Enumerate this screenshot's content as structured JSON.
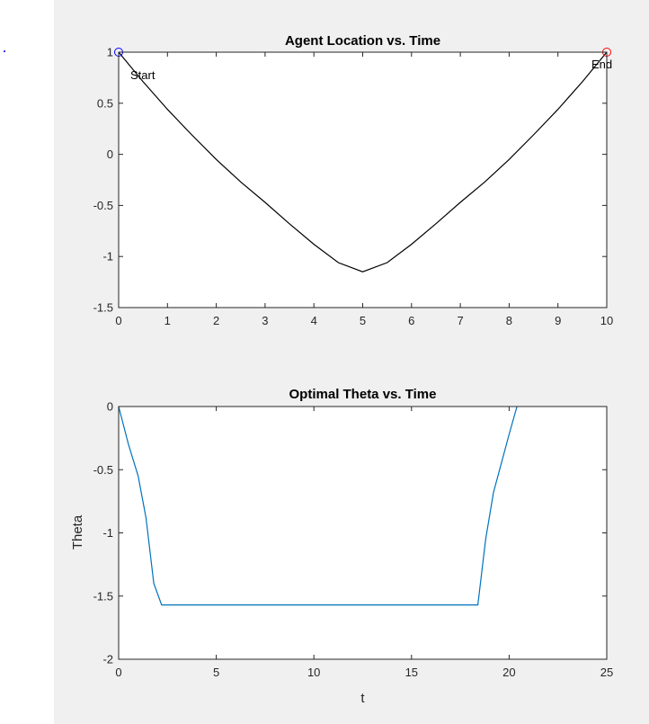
{
  "chart_data": [
    {
      "type": "line",
      "title": "Agent Location vs. Time",
      "xlabel": "",
      "ylabel": "",
      "xlim": [
        0,
        10
      ],
      "ylim": [
        -1.5,
        1
      ],
      "xticks": [
        "0",
        "1",
        "2",
        "3",
        "4",
        "5",
        "6",
        "7",
        "8",
        "9",
        "10"
      ],
      "yticks": [
        "1",
        "0.5",
        "0",
        "-0.5",
        "-1",
        "-1.5"
      ],
      "grid": false,
      "series": [
        {
          "color": "#000000",
          "x": [
            0,
            0.5,
            1,
            1.5,
            2,
            2.5,
            3,
            3.5,
            4,
            4.5,
            5,
            5.5,
            6,
            6.5,
            7,
            7.5,
            8,
            8.5,
            9,
            9.5,
            10
          ],
          "y": [
            1.0,
            0.71,
            0.44,
            0.19,
            -0.05,
            -0.27,
            -0.47,
            -0.68,
            -0.88,
            -1.06,
            -1.15,
            -1.06,
            -0.88,
            -0.68,
            -0.47,
            -0.27,
            -0.05,
            0.19,
            0.44,
            0.71,
            1.0
          ]
        }
      ],
      "markers": [
        {
          "x": 0,
          "y": 1,
          "color": "#0000ff",
          "label": "Start"
        },
        {
          "x": 10,
          "y": 1,
          "color": "#ff0000",
          "label": "End"
        }
      ]
    },
    {
      "type": "line",
      "title": "Optimal Theta vs. Time",
      "xlabel": "t",
      "ylabel": "Theta",
      "xlim": [
        0,
        25
      ],
      "ylim": [
        -2,
        0
      ],
      "xticks": [
        "0",
        "5",
        "10",
        "15",
        "20",
        "25"
      ],
      "yticks": [
        "0",
        "-0.5",
        "-1",
        "-1.5",
        "-2"
      ],
      "grid": false,
      "series": [
        {
          "color": "#0072bd",
          "x": [
            0,
            0.5,
            1.0,
            1.4,
            1.8,
            2.2,
            18.4,
            18.8,
            19.2,
            19.6,
            20.0,
            20.4
          ],
          "y": [
            0,
            -0.3,
            -0.55,
            -0.88,
            -1.4,
            -1.57,
            -1.57,
            -1.05,
            -0.68,
            -0.45,
            -0.22,
            0
          ]
        }
      ]
    }
  ]
}
